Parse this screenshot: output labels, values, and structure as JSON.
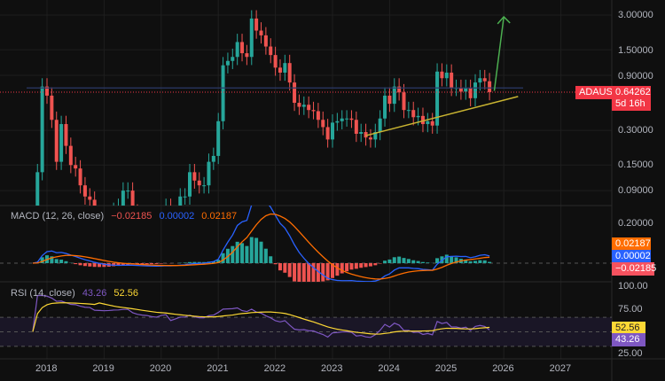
{
  "symbol": "ADAUSD",
  "last_price": "0.64262",
  "countdown": "5d 16h",
  "price_axis": [
    "3.00000",
    "1.50000",
    "0.90000",
    "0.30000",
    "0.15000",
    "0.09000"
  ],
  "macd": {
    "title": "MACD (12, 26, close)",
    "hist": "−0.02185",
    "macd": "0.00002",
    "signal": "0.02187",
    "axis": "0.20000"
  },
  "rsi": {
    "title": "RSI (14, close)",
    "rsi": "43.26",
    "ma": "52.56",
    "axis": [
      "100.00",
      "75.00",
      "25.00"
    ]
  },
  "x_axis": [
    "2018",
    "2019",
    "2020",
    "2021",
    "2022",
    "2023",
    "2024",
    "2025",
    "2026",
    "2027"
  ],
  "colors": {
    "up": "#26a69a",
    "down": "#ef5350",
    "macd": "#2962ff",
    "signal": "#ff6d00",
    "rsi": "#7e57c2",
    "rsi_ma": "#fdd835",
    "trend": "#c9b431",
    "arrow": "#4caf50"
  },
  "chart_data": {
    "type": "candlestick",
    "scale": "log",
    "start": "2017-10",
    "interval": "month",
    "close": [
      0.03,
      0.13,
      0.72,
      0.6,
      0.37,
      0.16,
      0.34,
      0.22,
      0.15,
      0.14,
      0.1,
      0.08,
      0.075,
      0.044,
      0.042,
      0.04,
      0.046,
      0.06,
      0.065,
      0.09,
      0.09,
      0.058,
      0.047,
      0.042,
      0.04,
      0.035,
      0.033,
      0.052,
      0.065,
      0.034,
      0.05,
      0.08,
      0.08,
      0.13,
      0.11,
      0.1,
      0.1,
      0.16,
      0.18,
      0.36,
      1.1,
      1.2,
      1.3,
      1.75,
      1.4,
      1.3,
      2.8,
      2.2,
      2.0,
      1.6,
      1.35,
      1.05,
      0.95,
      1.15,
      0.78,
      0.52,
      0.48,
      0.5,
      0.45,
      0.44,
      0.37,
      0.32,
      0.25,
      0.35,
      0.36,
      0.38,
      0.38,
      0.37,
      0.28,
      0.29,
      0.26,
      0.25,
      0.29,
      0.38,
      0.6,
      0.51,
      0.72,
      0.64,
      0.45,
      0.45,
      0.39,
      0.4,
      0.34,
      0.36,
      0.33,
      0.97,
      0.85,
      0.95,
      0.7,
      0.7,
      0.65,
      0.7,
      0.57,
      0.78,
      0.85,
      0.8,
      0.64262
    ],
    "ylim": [
      0.07,
      3.3
    ],
    "horizontal_level": 0.7,
    "trendline": [
      [
        "2023-08",
        0.27
      ],
      [
        "2026-04",
        0.59
      ]
    ],
    "projection_arrow": [
      [
        "2025-11",
        0.66
      ],
      [
        "2026-01",
        2.9
      ]
    ]
  }
}
